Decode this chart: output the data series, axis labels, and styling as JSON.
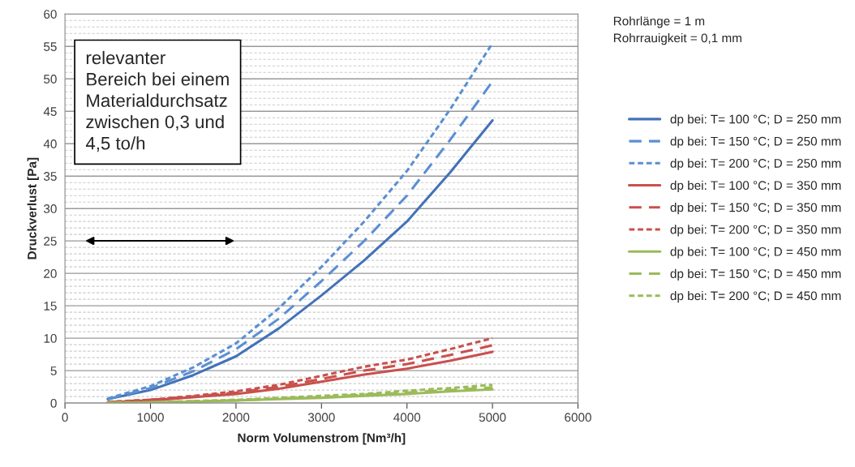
{
  "chart_data": {
    "type": "line",
    "xlabel": "Norm Volumenstrom [Nm³/h]",
    "ylabel": "Druckverlust [Pa]",
    "x": [
      500,
      1000,
      1500,
      2000,
      2500,
      3000,
      3500,
      4000,
      4500,
      5000
    ],
    "xlim": [
      0,
      6000
    ],
    "xticks": [
      0,
      1000,
      2000,
      3000,
      4000,
      5000,
      6000
    ],
    "ylim": [
      0,
      60
    ],
    "yticks": [
      0,
      5,
      10,
      15,
      20,
      25,
      30,
      35,
      40,
      45,
      50,
      55,
      60
    ],
    "grid": "y",
    "legend": "right",
    "marker": "none",
    "series": [
      {
        "name": "dp bei: T= 100 °C; D = 250 mm",
        "color": "#4372b8",
        "line_style": "solid",
        "values": [
          0.6,
          2.0,
          4.3,
          7.2,
          11.5,
          16.6,
          22.0,
          28.0,
          35.5,
          43.6
        ]
      },
      {
        "name": "dp bei: T= 150 °C; D = 250 mm",
        "color": "#5b8fd2",
        "line_style": "dashed",
        "values": [
          0.6,
          2.3,
          4.9,
          8.3,
          13.0,
          18.8,
          25.0,
          32.0,
          40.5,
          49.6
        ]
      },
      {
        "name": "dp bei: T= 200 °C; D = 250 mm",
        "color": "#5b8fd2",
        "line_style": "dotted",
        "values": [
          0.7,
          2.6,
          5.5,
          9.2,
          14.6,
          21.0,
          28.0,
          35.8,
          45.2,
          55.5
        ]
      },
      {
        "name": "dp bei: T= 100 °C; D = 350 mm",
        "color": "#c9504d",
        "line_style": "solid",
        "values": [
          0.1,
          0.4,
          0.9,
          1.4,
          2.2,
          3.3,
          4.4,
          5.3,
          6.5,
          7.9
        ]
      },
      {
        "name": "dp bei: T= 150 °C; D = 350 mm",
        "color": "#c9504d",
        "line_style": "dashed",
        "values": [
          0.1,
          0.5,
          1.0,
          1.6,
          2.5,
          3.7,
          5.0,
          6.0,
          7.4,
          8.9
        ]
      },
      {
        "name": "dp bei: T= 200 °C; D = 350 mm",
        "color": "#c9504d",
        "line_style": "dotted",
        "values": [
          0.2,
          0.5,
          1.1,
          1.8,
          2.8,
          4.2,
          5.6,
          6.7,
          8.3,
          10.0
        ]
      },
      {
        "name": "dp bei: T= 100 °C; D = 450 mm",
        "color": "#9bbb59",
        "line_style": "solid",
        "values": [
          0.0,
          0.1,
          0.2,
          0.4,
          0.6,
          0.8,
          1.1,
          1.4,
          1.8,
          2.1
        ]
      },
      {
        "name": "dp bei: T= 150 °C; D = 450 mm",
        "color": "#9bbb59",
        "line_style": "dashed",
        "values": [
          0.0,
          0.1,
          0.3,
          0.4,
          0.7,
          0.9,
          1.3,
          1.6,
          2.0,
          2.4
        ]
      },
      {
        "name": "dp bei: T= 200 °C; D = 450 mm",
        "color": "#9bbb59",
        "line_style": "dotted",
        "values": [
          0.1,
          0.1,
          0.3,
          0.5,
          0.8,
          1.1,
          1.4,
          1.9,
          2.3,
          2.8
        ]
      }
    ],
    "annotations": [
      "relevanter\nBereich bei einem\nMaterialdurchsatz\nzwischen 0,3 und\n4,5 to/h",
      "Rohrlänge = 1 m\nRohrrauigkeit = 0,1 mm"
    ]
  }
}
